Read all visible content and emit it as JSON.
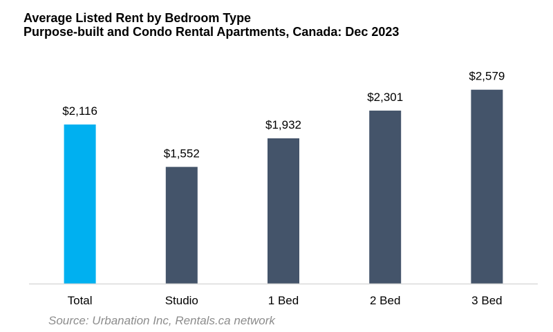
{
  "chart_data": {
    "type": "bar",
    "title": "Average Listed Rent by Bedroom Type",
    "subtitle": "Purpose-built and Condo Rental Apartments, Canada: Dec 2023",
    "categories": [
      "Total",
      "Studio",
      "1 Bed",
      "2 Bed",
      "3 Bed"
    ],
    "values": [
      2116,
      1552,
      1932,
      2301,
      2579
    ],
    "value_labels": [
      "$2,116",
      "$1,552",
      "$1,932",
      "$2,301",
      "$2,579"
    ],
    "bar_colors": [
      "#00b0f0",
      "#44546a",
      "#44546a",
      "#44546a",
      "#44546a"
    ],
    "axis_color": "#d9d9d9",
    "xlabel": "",
    "ylabel": "",
    "ylim": [
      0,
      2800
    ],
    "grid": false,
    "legend": "none"
  },
  "source": "Source: Urbanation Inc, Rentals.ca network"
}
